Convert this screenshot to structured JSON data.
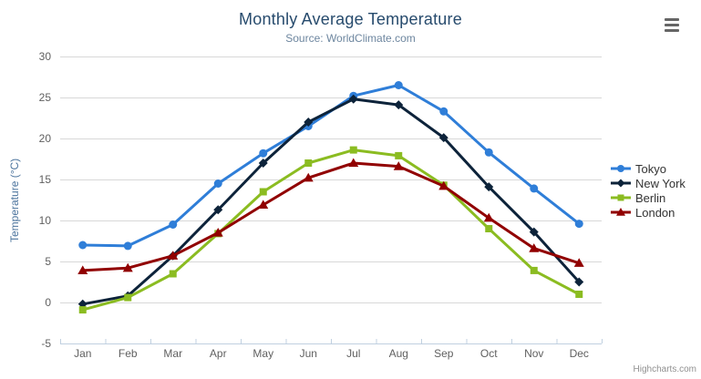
{
  "ui": {
    "menu_icon": "hamburger-icon",
    "credits_label": "Highcharts.com"
  },
  "colors": {
    "title": "#274b6d",
    "subtitle": "#6d869f",
    "axis_title": "#4d759e",
    "axis_label": "#606060",
    "grid": "#d8d8d8",
    "axis_line": "#c0d0e0",
    "legend_text": "#333333",
    "credits": "#909090",
    "menu": "#666666"
  },
  "chart_data": {
    "type": "line",
    "title": "Monthly Average Temperature",
    "subtitle": "Source: WorldClimate.com",
    "xlabel": "",
    "ylabel": "Temperature (°C)",
    "ylim": [
      -5,
      30
    ],
    "yticks": [
      -5,
      0,
      5,
      10,
      15,
      20,
      25,
      30
    ],
    "grid": true,
    "legend_position": "right",
    "categories": [
      "Jan",
      "Feb",
      "Mar",
      "Apr",
      "May",
      "Jun",
      "Jul",
      "Aug",
      "Sep",
      "Oct",
      "Nov",
      "Dec"
    ],
    "series": [
      {
        "name": "Tokyo",
        "color": "#2f7ed8",
        "marker": "circle",
        "values": [
          7.0,
          6.9,
          9.5,
          14.5,
          18.2,
          21.5,
          25.2,
          26.5,
          23.3,
          18.3,
          13.9,
          9.6
        ]
      },
      {
        "name": "New York",
        "color": "#0d233a",
        "marker": "diamond",
        "values": [
          -0.2,
          0.8,
          5.7,
          11.3,
          17.0,
          22.0,
          24.8,
          24.1,
          20.1,
          14.1,
          8.6,
          2.5
        ]
      },
      {
        "name": "Berlin",
        "color": "#8bbc21",
        "marker": "square",
        "values": [
          -0.9,
          0.6,
          3.5,
          8.4,
          13.5,
          17.0,
          18.6,
          17.9,
          14.3,
          9.0,
          3.9,
          1.0
        ]
      },
      {
        "name": "London",
        "color": "#910000",
        "marker": "triangle",
        "values": [
          3.9,
          4.2,
          5.7,
          8.5,
          11.9,
          15.2,
          17.0,
          16.6,
          14.2,
          10.3,
          6.6,
          4.8
        ]
      }
    ]
  }
}
